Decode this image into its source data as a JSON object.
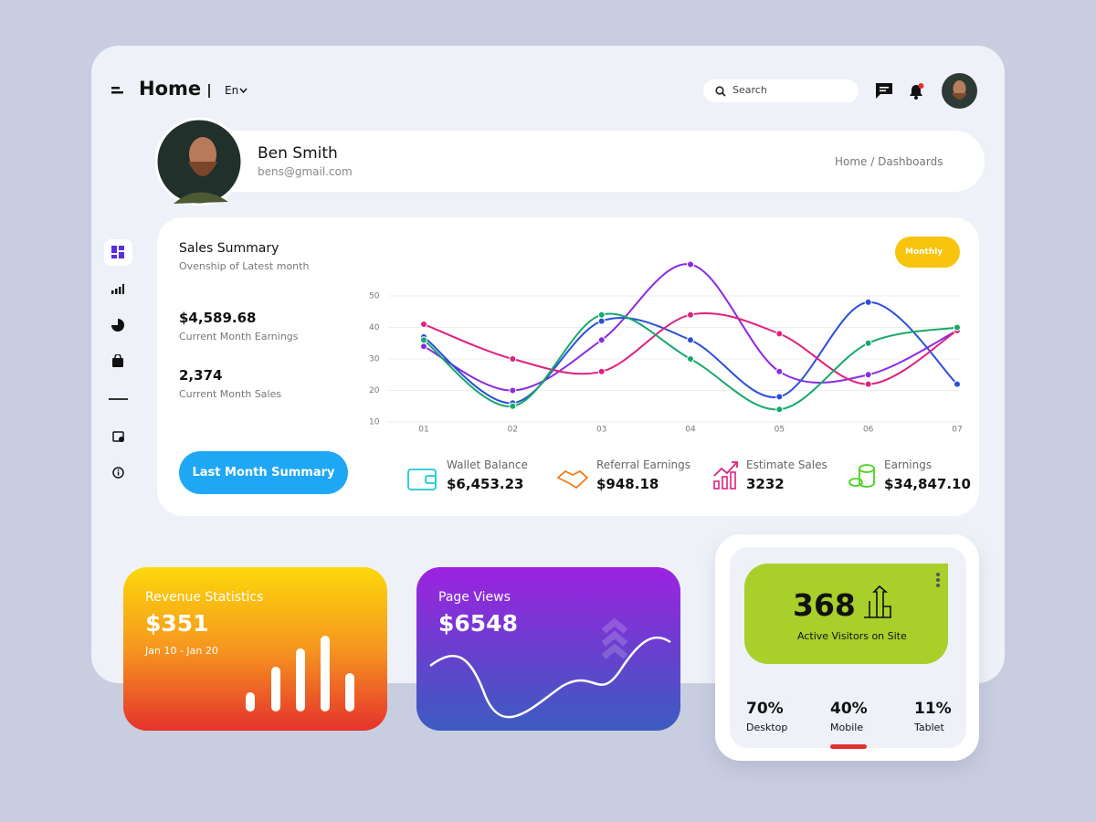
{
  "header": {
    "title": "Home",
    "language": "En",
    "search_placeholder": "Search"
  },
  "profile": {
    "name": "Ben Smith",
    "email": "bens@gmail.com",
    "breadcrumb": "Home / Dashboards"
  },
  "sales_summary": {
    "title": "Sales Summary",
    "subtitle": "Ovenship of Latest month",
    "period": "Monthly",
    "metrics": [
      {
        "value": "$4,589.68",
        "label": "Current Month Earnings"
      },
      {
        "value": "2,374",
        "label": "Current Month Sales"
      }
    ],
    "button": "Last Month Summary",
    "chart": {
      "type": "line",
      "categories": [
        "01",
        "02",
        "03",
        "04",
        "05",
        "06",
        "07"
      ],
      "ylim": [
        10,
        50
      ],
      "yticks": [
        10,
        20,
        30,
        40,
        50
      ],
      "grid": true,
      "series": [
        {
          "color": "#8a2be2",
          "values": [
            34,
            20,
            36,
            60,
            26,
            25,
            39
          ]
        },
        {
          "color": "#2b4fd8",
          "values": [
            37,
            16,
            42,
            36,
            18,
            48,
            22
          ]
        },
        {
          "color": "#e0207f",
          "values": [
            41,
            30,
            26,
            44,
            38,
            22,
            39
          ]
        },
        {
          "color": "#17a86b",
          "values": [
            36,
            15,
            44,
            30,
            14,
            35,
            40
          ]
        }
      ]
    },
    "stats": [
      {
        "label": "Wallet Balance",
        "value": "$6,453.23"
      },
      {
        "label": "Referral Earnings",
        "value": "$948.18"
      },
      {
        "label": "Estimate Sales",
        "value": "3232"
      },
      {
        "label": "Earnings",
        "value": "$34,847.10"
      }
    ]
  },
  "cards": {
    "revenue": {
      "title": "Revenue Statistics",
      "value": "$351",
      "range": "Jan 10 - Jan 20"
    },
    "page_views": {
      "title": "Page Views",
      "value": "$6548"
    },
    "visitors": {
      "value": "368",
      "label": "Active Visitors on Site",
      "devices": [
        {
          "share": "70%",
          "name": "Desktop"
        },
        {
          "share": "40%",
          "name": "Mobile"
        },
        {
          "share": "11%",
          "name": "Tablet"
        }
      ]
    }
  }
}
